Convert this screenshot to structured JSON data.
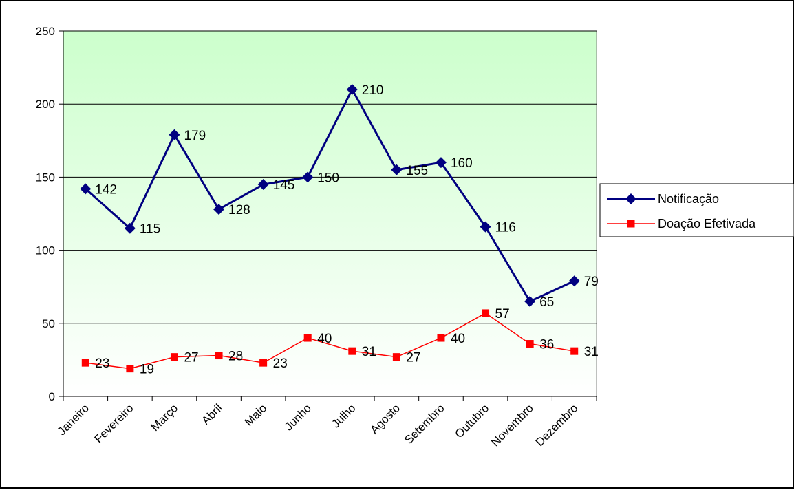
{
  "chart_data": {
    "type": "line",
    "categories": [
      "Janeiro",
      "Fevereiro",
      "Março",
      "Abril",
      "Maio",
      "Junho",
      "Julho",
      "Agosto",
      "Setembro",
      "Outubro",
      "Novembro",
      "Dezembro"
    ],
    "series": [
      {
        "name": "Notificação",
        "values": [
          142,
          115,
          179,
          128,
          145,
          150,
          210,
          155,
          160,
          116,
          65,
          79
        ],
        "color": "#000080",
        "marker": "diamond"
      },
      {
        "name": "Doação Efetivada",
        "values": [
          23,
          19,
          27,
          28,
          23,
          40,
          31,
          27,
          40,
          57,
          36,
          31
        ],
        "color": "#ff0000",
        "marker": "square"
      }
    ],
    "title": "",
    "xlabel": "",
    "ylabel": "",
    "ylim": [
      0,
      250
    ],
    "yticks": [
      0,
      50,
      100,
      150,
      200,
      250
    ],
    "grid": true,
    "legend_position": "right",
    "plot_background": "gradient green-to-white"
  }
}
